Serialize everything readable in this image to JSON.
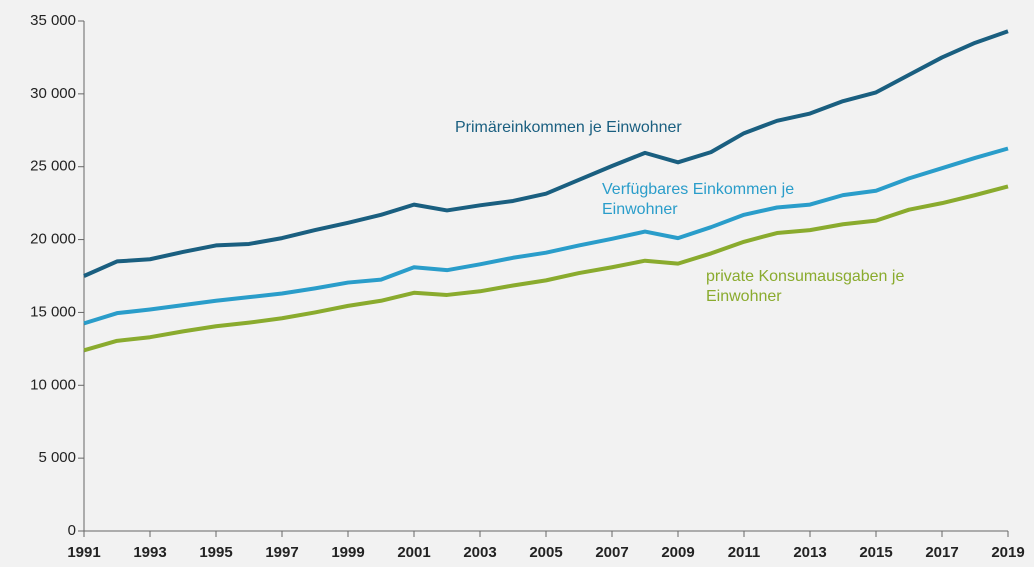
{
  "chart_data": {
    "type": "line",
    "x": [
      1991,
      1992,
      1993,
      1994,
      1995,
      1996,
      1997,
      1998,
      1999,
      2000,
      2001,
      2002,
      2003,
      2004,
      2005,
      2006,
      2007,
      2008,
      2009,
      2010,
      2011,
      2012,
      2013,
      2014,
      2015,
      2016,
      2017,
      2018,
      2019
    ],
    "series": [
      {
        "name": "Primäreinkommen je Einwohner",
        "color": "#1a5f80",
        "values": [
          17500,
          18500,
          18650,
          19150,
          19600,
          19700,
          20100,
          20650,
          21150,
          21700,
          22400,
          22000,
          22350,
          22650,
          23150,
          24100,
          25050,
          25950,
          25300,
          26000,
          27300,
          28150,
          28650,
          29500,
          30100,
          31300,
          32500,
          33500,
          34300
        ]
      },
      {
        "name": "Verfügbares Einkommen je Einwohner",
        "color": "#2a9dca",
        "values": [
          14250,
          14950,
          15200,
          15500,
          15800,
          16050,
          16300,
          16650,
          17050,
          17250,
          18100,
          17900,
          18300,
          18750,
          19100,
          19600,
          20050,
          20550,
          20100,
          20850,
          21700,
          22200,
          22400,
          23050,
          23350,
          24200,
          24900,
          25600,
          26250
        ]
      },
      {
        "name": "private Konsumausgaben je Einwohner",
        "color": "#8aab2e",
        "values": [
          12400,
          13050,
          13300,
          13700,
          14050,
          14300,
          14600,
          15000,
          15450,
          15800,
          16350,
          16200,
          16450,
          16850,
          17200,
          17700,
          18100,
          18550,
          18350,
          19050,
          19850,
          20450,
          20650,
          21050,
          21300,
          22050,
          22500,
          23050,
          23650
        ]
      }
    ],
    "xlim": [
      1991,
      2019
    ],
    "xticks": [
      1991,
      1993,
      1995,
      1997,
      1999,
      2001,
      2003,
      2005,
      2007,
      2009,
      2011,
      2013,
      2015,
      2017,
      2019
    ],
    "ylim": [
      0,
      35000
    ],
    "yticks": [
      0,
      {
        "value": 5000,
        "label": "5 000"
      },
      {
        "value": 10000,
        "label": "10 000"
      },
      {
        "value": 15000,
        "label": "15 000"
      },
      {
        "value": 20000,
        "label": "20 000"
      },
      {
        "value": 25000,
        "label": "25 000"
      },
      {
        "value": 30000,
        "label": "30 000"
      },
      {
        "value": 35000,
        "label": "35 000"
      }
    ]
  }
}
